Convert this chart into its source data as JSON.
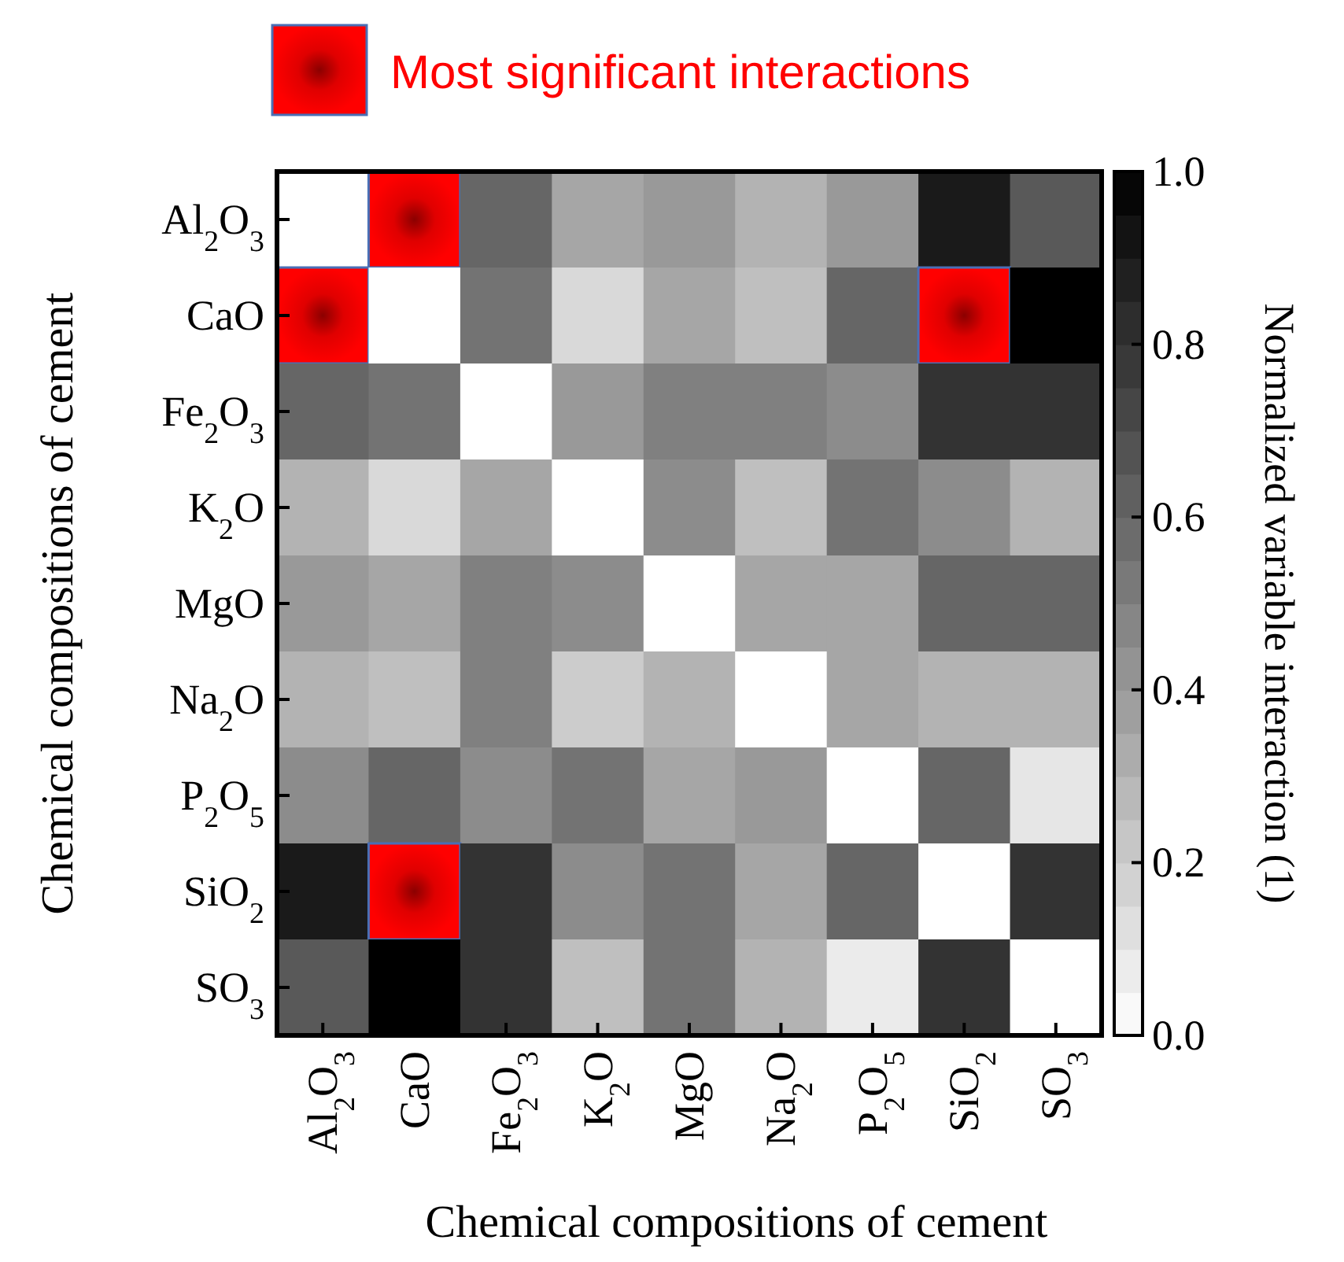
{
  "chart_data": {
    "type": "heatmap",
    "xlabel": "Chemical compositions of cement",
    "ylabel": "Chemical compositions of cement",
    "clabel": "Normalized variable interaction (1)",
    "categories": [
      "Al$_{2}$O$_{3}$",
      "CaO",
      "Fe$_{2}$O$_{3}$",
      "K$_{2}$O",
      "MgO",
      "Na$_{2}$O",
      "P$_{2}$O$_{5}$",
      "SiO$_{2}$",
      "SO$_{3}$"
    ],
    "y_categories": [
      "Al$_{2}$O$_{3}$",
      "CaO",
      "Fe$_{2}$O$_{3}$",
      "K$_{2}$O",
      "MgO",
      "Na$_{2}$O",
      "P$_{2}$O$_{5}$",
      "SiO$_{2}$",
      "SO$_{3}$"
    ],
    "cells": [
      [
        0,
        null,
        0.6,
        0.35,
        0.4,
        0.3,
        0.4,
        0.9,
        0.65
      ],
      [
        null,
        0,
        0.55,
        0.15,
        0.35,
        0.25,
        0.6,
        null,
        1.0
      ],
      [
        0.6,
        0.55,
        0,
        0.4,
        0.5,
        0.5,
        0.45,
        0.8,
        0.8
      ],
      [
        0.3,
        0.15,
        0.35,
        0,
        0.45,
        0.25,
        0.55,
        0.45,
        0.3
      ],
      [
        0.4,
        0.35,
        0.5,
        0.45,
        0,
        0.35,
        0.35,
        0.6,
        0.6
      ],
      [
        0.3,
        0.25,
        0.5,
        0.2,
        0.3,
        0,
        0.35,
        0.3,
        0.3
      ],
      [
        0.45,
        0.6,
        0.45,
        0.55,
        0.35,
        0.4,
        0,
        0.6,
        0.1
      ],
      [
        0.9,
        null,
        0.8,
        0.45,
        0.55,
        0.35,
        0.6,
        0,
        0.8
      ],
      [
        0.65,
        1.0,
        0.8,
        0.25,
        0.55,
        0.3,
        0.08,
        0.8,
        0
      ]
    ],
    "clim": [
      0,
      1
    ],
    "cticks": [
      {
        "value": 0,
        "label": "0.0"
      },
      {
        "value": 0.2,
        "label": "0.2"
      },
      {
        "value": 0.4,
        "label": "0.4"
      },
      {
        "value": 0.6,
        "label": "0.6"
      },
      {
        "value": 0.8,
        "label": "0.8"
      },
      {
        "value": 1,
        "label": "1.0"
      }
    ],
    "annotations": [
      "Most significant interactions"
    ]
  }
}
